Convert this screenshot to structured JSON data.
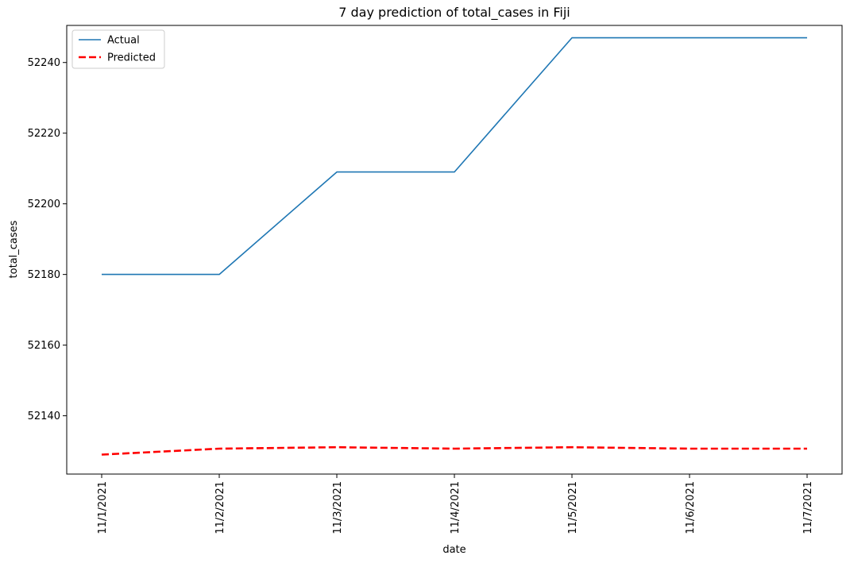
{
  "chart_data": {
    "type": "line",
    "title": "7 day prediction of total_cases in Fiji",
    "xlabel": "date",
    "ylabel": "total_cases",
    "categories": [
      "11/1/2021",
      "11/2/2021",
      "11/3/2021",
      "11/4/2021",
      "11/5/2021",
      "11/6/2021",
      "11/7/2021"
    ],
    "yticks": [
      52140,
      52160,
      52180,
      52200,
      52220,
      52240
    ],
    "ylim": [
      52123.5,
      52250.5
    ],
    "grid": false,
    "legend_position": "top-left",
    "series": [
      {
        "name": "Actual",
        "values": [
          52180,
          52180,
          52209,
          52209,
          52247,
          52247,
          52247
        ],
        "color": "#1f77b4",
        "style": "solid"
      },
      {
        "name": "Predicted",
        "values": [
          52129,
          52130.7,
          52131.1,
          52130.7,
          52131.1,
          52130.7,
          52130.7
        ],
        "color": "#ff0000",
        "style": "dashed"
      }
    ]
  }
}
